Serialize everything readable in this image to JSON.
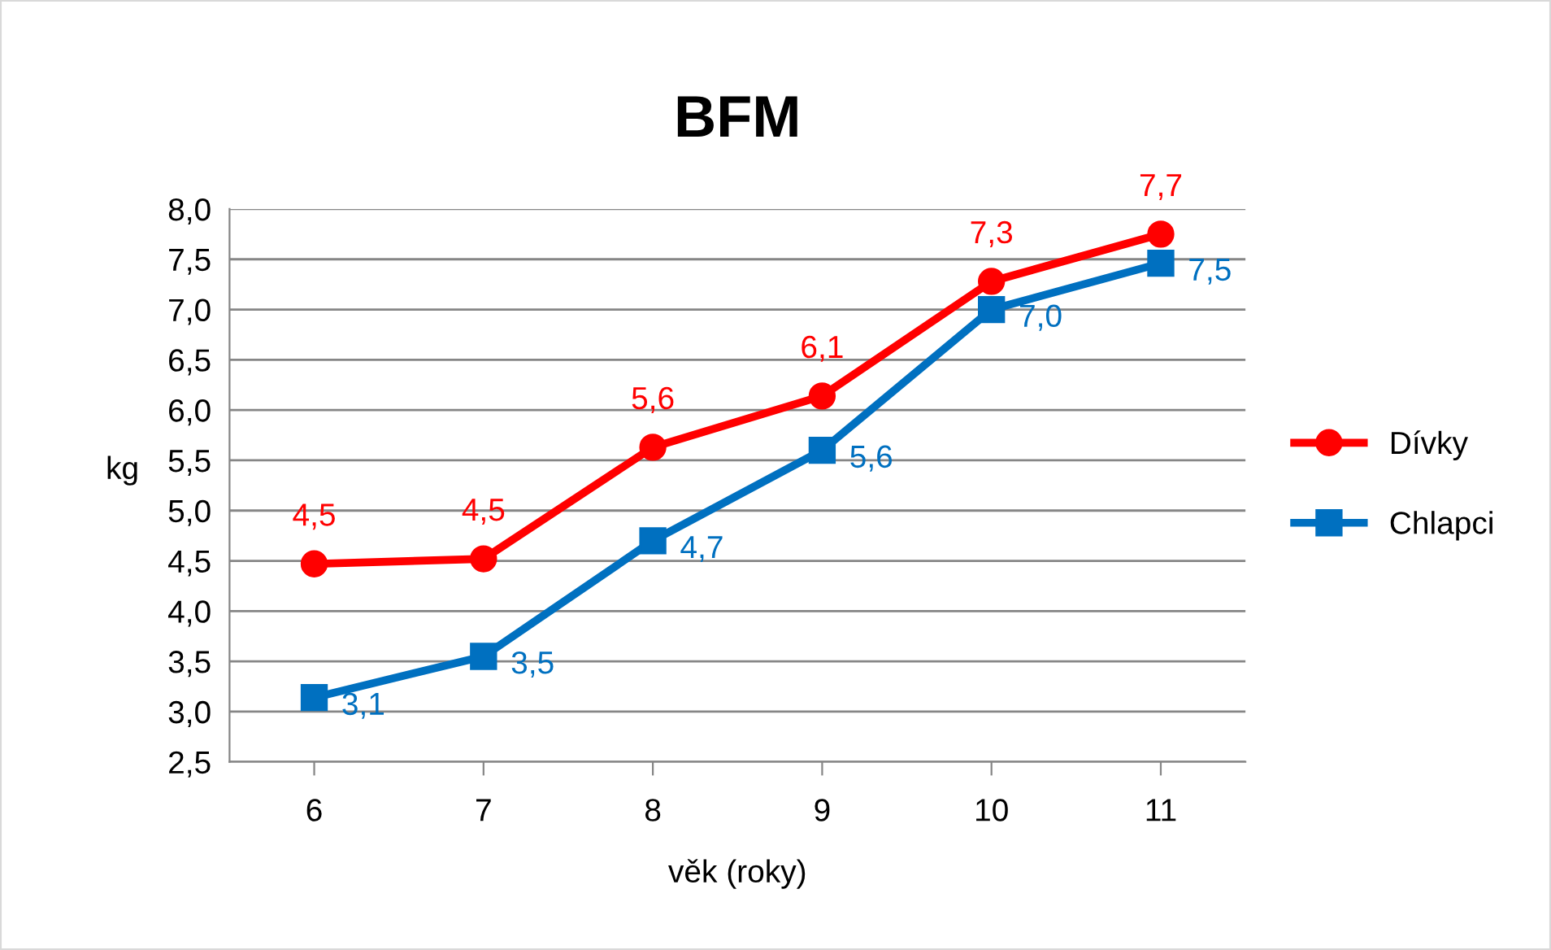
{
  "chart_data": {
    "type": "line",
    "title": "BFM",
    "xlabel": "věk (roky)",
    "ylabel": "kg",
    "categories": [
      "6",
      "7",
      "8",
      "9",
      "10",
      "11"
    ],
    "series": [
      {
        "name": "Dívky",
        "color": "#ff0000",
        "marker": "circle",
        "values": [
          4.47,
          4.52,
          5.63,
          6.14,
          7.28,
          7.75
        ],
        "value_labels": [
          "4,5",
          "4,5",
          "5,6",
          "6,1",
          "7,3",
          "7,7"
        ]
      },
      {
        "name": "Chlapci",
        "color": "#0070c0",
        "marker": "square",
        "values": [
          3.14,
          3.55,
          4.7,
          5.6,
          7.0,
          7.46
        ],
        "value_labels": [
          "3,1",
          "3,5",
          "4,7",
          "5,6",
          "7,0",
          "7,5"
        ]
      }
    ],
    "ylim": [
      2.5,
      8.0
    ],
    "yticks": [
      {
        "value": 2.5,
        "label": "2,5"
      },
      {
        "value": 3.0,
        "label": "3,0"
      },
      {
        "value": 3.5,
        "label": "3,5"
      },
      {
        "value": 4.0,
        "label": "4,0"
      },
      {
        "value": 4.5,
        "label": "4,5"
      },
      {
        "value": 5.0,
        "label": "5,0"
      },
      {
        "value": 5.5,
        "label": "5,5"
      },
      {
        "value": 6.0,
        "label": "6,0"
      },
      {
        "value": 6.5,
        "label": "6,5"
      },
      {
        "value": 7.0,
        "label": "7,0"
      },
      {
        "value": 7.5,
        "label": "7,5"
      },
      {
        "value": 8.0,
        "label": "8,0"
      }
    ],
    "grid": "y",
    "legend": "right",
    "line_style": "solid"
  }
}
